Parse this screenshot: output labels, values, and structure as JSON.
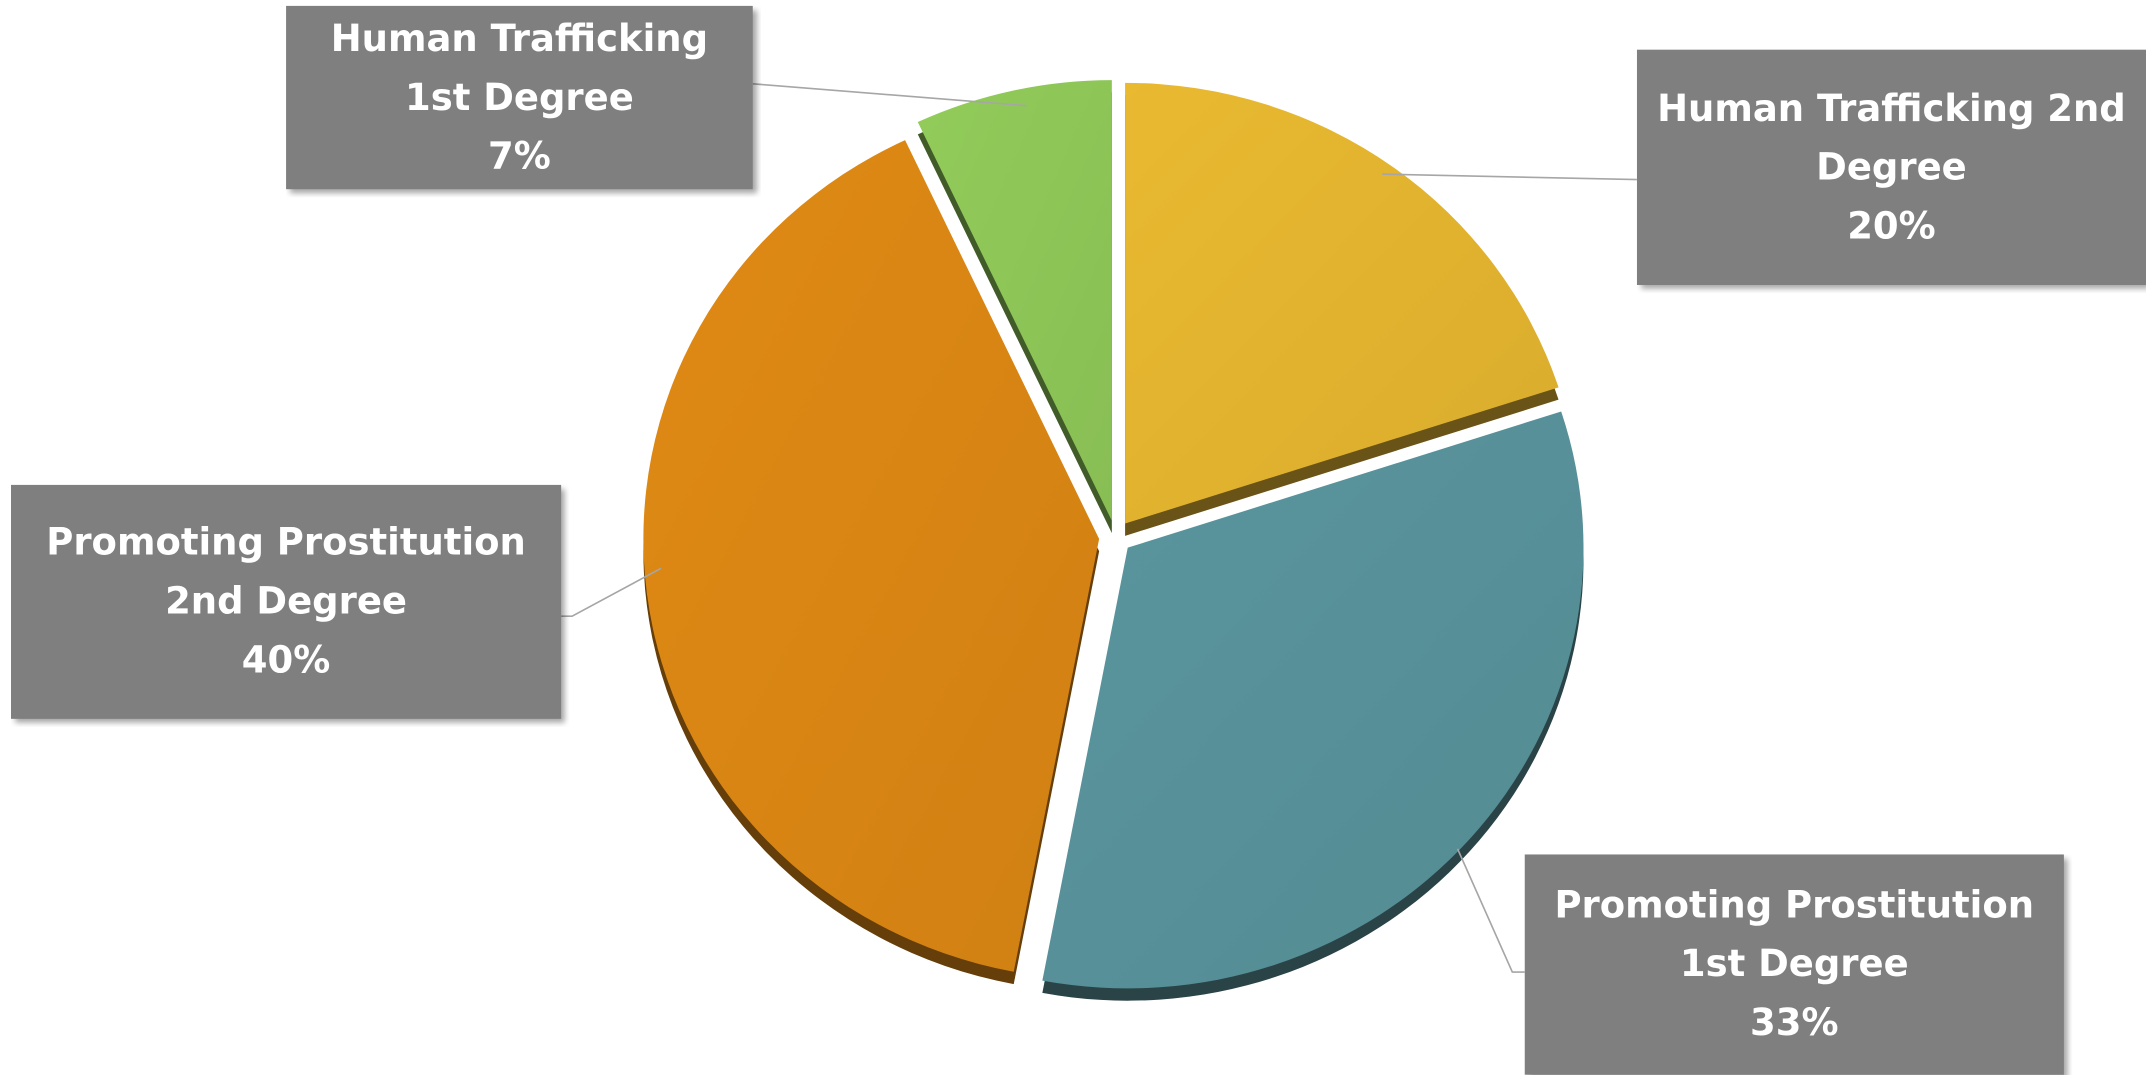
{
  "chart_data": {
    "type": "pie",
    "categories": [
      "Human Trafficking 2nd Degree",
      "Promoting Prostitution 1st Degree",
      "Promoting Prostitution 2nd Degree",
      "Human Trafficking 1st Degree"
    ],
    "values": [
      20,
      33,
      40,
      7
    ],
    "value_labels": [
      "20%",
      "33%",
      "40%",
      "7%"
    ],
    "colors": [
      "#e9b930",
      "#5a959e",
      "#e08a14",
      "#92cc5a"
    ]
  }
}
